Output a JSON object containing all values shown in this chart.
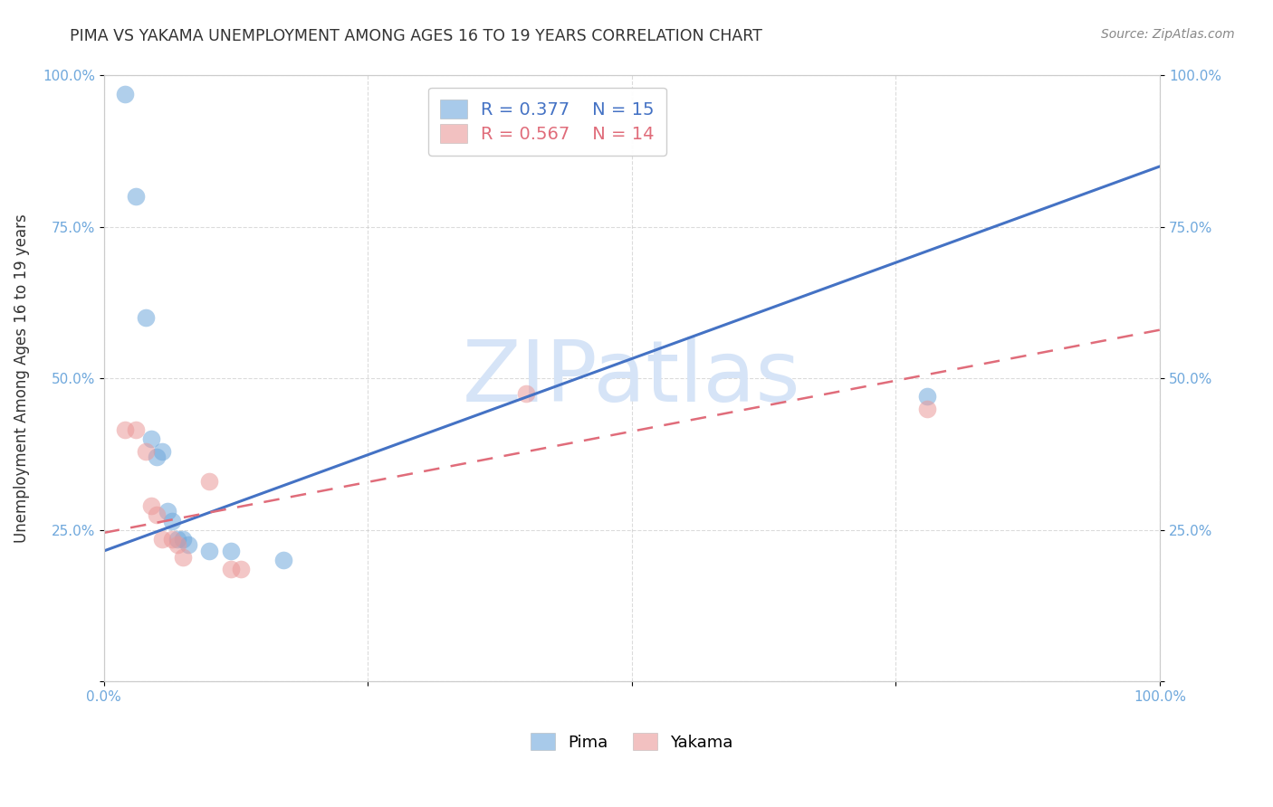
{
  "title": "PIMA VS YAKAMA UNEMPLOYMENT AMONG AGES 16 TO 19 YEARS CORRELATION CHART",
  "source": "Source: ZipAtlas.com",
  "ylabel": "Unemployment Among Ages 16 to 19 years",
  "xlim": [
    0,
    1.0
  ],
  "ylim": [
    0,
    1.0
  ],
  "xticks": [
    0.0,
    0.25,
    0.5,
    0.75,
    1.0
  ],
  "xticklabels": [
    "0.0%",
    "",
    "",
    "",
    "100.0%"
  ],
  "yticks": [
    0.0,
    0.25,
    0.5,
    0.75,
    1.0
  ],
  "yticklabels": [
    "",
    "25.0%",
    "50.0%",
    "75.0%",
    "100.0%"
  ],
  "pima_R": 0.377,
  "pima_N": 15,
  "yakama_R": 0.567,
  "yakama_N": 14,
  "pima_color": "#6fa8dc",
  "yakama_color": "#ea9999",
  "pima_line_color": "#4472c4",
  "yakama_line_color": "#e06c7a",
  "pima_scatter": [
    [
      0.02,
      0.97
    ],
    [
      0.03,
      0.8
    ],
    [
      0.04,
      0.6
    ],
    [
      0.045,
      0.4
    ],
    [
      0.05,
      0.37
    ],
    [
      0.055,
      0.38
    ],
    [
      0.06,
      0.28
    ],
    [
      0.065,
      0.265
    ],
    [
      0.07,
      0.235
    ],
    [
      0.075,
      0.235
    ],
    [
      0.08,
      0.225
    ],
    [
      0.1,
      0.215
    ],
    [
      0.12,
      0.215
    ],
    [
      0.17,
      0.2
    ],
    [
      0.78,
      0.47
    ]
  ],
  "yakama_scatter": [
    [
      0.02,
      0.415
    ],
    [
      0.03,
      0.415
    ],
    [
      0.04,
      0.38
    ],
    [
      0.045,
      0.29
    ],
    [
      0.05,
      0.275
    ],
    [
      0.055,
      0.235
    ],
    [
      0.065,
      0.235
    ],
    [
      0.07,
      0.225
    ],
    [
      0.075,
      0.205
    ],
    [
      0.1,
      0.33
    ],
    [
      0.12,
      0.185
    ],
    [
      0.13,
      0.185
    ],
    [
      0.4,
      0.475
    ],
    [
      0.78,
      0.45
    ]
  ],
  "pima_trend_x0": 0.0,
  "pima_trend_x1": 1.0,
  "pima_trend_y0": 0.215,
  "pima_trend_y1": 0.85,
  "yakama_trend_x0": 0.0,
  "yakama_trend_x1": 1.0,
  "yakama_trend_y0": 0.245,
  "yakama_trend_y1": 0.58,
  "background_color": "#ffffff",
  "grid_color": "#cccccc",
  "axis_color": "#6fa8dc",
  "watermark": "ZIPatlas",
  "watermark_color": "#d6e4f7"
}
